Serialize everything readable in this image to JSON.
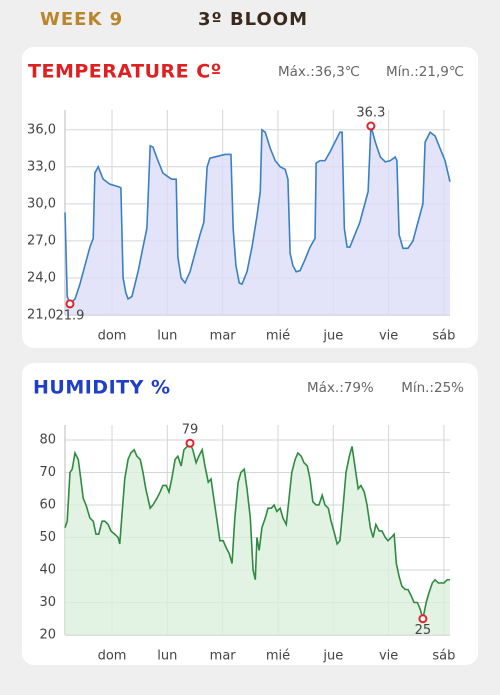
{
  "header": {
    "week": "WEEK 9",
    "stage": "3º BLOOM"
  },
  "chart_data": [
    {
      "type": "line",
      "title": "TEMPERATURE Cº",
      "title_color": "#e02020",
      "max_label": "Máx.:36,3℃",
      "min_label": "Mín.:21,9℃",
      "xlim": [
        0.15,
        7.11
      ],
      "xticks": [
        {
          "value": 1,
          "label": "dom"
        },
        {
          "value": 2,
          "label": "lun"
        },
        {
          "value": 3,
          "label": "mar"
        },
        {
          "value": 4,
          "label": "mié"
        },
        {
          "value": 5,
          "label": "jue"
        },
        {
          "value": 6,
          "label": "vie"
        },
        {
          "value": 7,
          "label": "sáb"
        }
      ],
      "ylim": [
        21,
        37.6
      ],
      "yticks": [
        {
          "value": 21,
          "label": "21,0"
        },
        {
          "value": 24,
          "label": "24,0"
        },
        {
          "value": 27,
          "label": "27,0"
        },
        {
          "value": 30,
          "label": "30,0"
        },
        {
          "value": 33,
          "label": "33,0"
        },
        {
          "value": 36,
          "label": "36,0"
        }
      ],
      "grid": true,
      "color": "#3a80c2",
      "area_color": "#dcdcf8",
      "marker_color": "#e0242c",
      "x": [
        0.15,
        0.19,
        0.24,
        0.33,
        0.42,
        0.51,
        0.6,
        0.66,
        0.69,
        0.75,
        0.84,
        0.96,
        1.11,
        1.16,
        1.2,
        1.25,
        1.29,
        1.36,
        1.47,
        1.56,
        1.63,
        1.69,
        1.74,
        1.83,
        1.92,
        2.01,
        2.08,
        2.16,
        2.19,
        2.25,
        2.32,
        2.41,
        2.5,
        2.59,
        2.66,
        2.72,
        2.77,
        2.86,
        2.95,
        3.04,
        3.1,
        3.15,
        3.19,
        3.24,
        3.3,
        3.35,
        3.44,
        3.53,
        3.62,
        3.68,
        3.71,
        3.77,
        3.86,
        3.95,
        4.04,
        4.13,
        4.18,
        4.22,
        4.27,
        4.33,
        4.4,
        4.49,
        4.58,
        4.67,
        4.69,
        4.76,
        4.85,
        4.94,
        5.03,
        5.12,
        5.16,
        5.2,
        5.25,
        5.3,
        5.39,
        5.48,
        5.57,
        5.63,
        5.68,
        5.76,
        5.85,
        5.94,
        6.03,
        6.12,
        6.15,
        6.19,
        6.26,
        6.35,
        6.44,
        6.53,
        6.62,
        6.66,
        6.75,
        6.84,
        6.93,
        7.02,
        7.11
      ],
      "values": [
        29.3,
        22.5,
        21.9,
        22.3,
        23.5,
        25,
        26.5,
        27.2,
        32.5,
        33,
        32,
        31.6,
        31.4,
        31.3,
        24,
        22.8,
        22.3,
        22.5,
        24.5,
        26.5,
        28,
        34.7,
        34.6,
        33.5,
        32.5,
        32.2,
        32,
        32,
        25.7,
        24,
        23.6,
        24.5,
        26,
        27.5,
        28.5,
        33,
        33.7,
        33.8,
        33.9,
        34,
        34,
        34,
        28,
        25,
        23.6,
        23.5,
        24.5,
        26.5,
        29,
        31,
        36,
        35.8,
        34.5,
        33.5,
        33,
        32.8,
        32,
        26,
        25,
        24.5,
        24.6,
        25.5,
        26.5,
        27.2,
        33.3,
        33.5,
        33.5,
        34.2,
        35,
        35.8,
        35.8,
        28,
        26.5,
        26.5,
        27.5,
        28.5,
        30,
        31,
        36.3,
        35,
        33.8,
        33.4,
        33.5,
        33.8,
        33.5,
        27.5,
        26.4,
        26.4,
        27,
        28.5,
        30,
        35,
        35.8,
        35.5,
        34.5,
        33.5,
        31.8
      ],
      "markers": [
        {
          "x": 5.68,
          "y": 36.3
        },
        {
          "x": 0.24,
          "y": 21.9
        }
      ]
    },
    {
      "type": "line",
      "title": "HUMIDITY %",
      "title_color": "#1f3fc8",
      "max_label": "Máx.:79%",
      "min_label": "Mín.:25%",
      "xlim": [
        0.15,
        7.11
      ],
      "xticks": [
        {
          "value": 1,
          "label": "dom"
        },
        {
          "value": 2,
          "label": "lun"
        },
        {
          "value": 3,
          "label": "mar"
        },
        {
          "value": 4,
          "label": "mié"
        },
        {
          "value": 5,
          "label": "jue"
        },
        {
          "value": 6,
          "label": "vie"
        },
        {
          "value": 7,
          "label": "sáb"
        }
      ],
      "ylim": [
        20,
        84.6
      ],
      "yticks": [
        20,
        30,
        40,
        50,
        60,
        70,
        80
      ],
      "grid": true,
      "color": "#2e8b40",
      "area_color": "#dbefdc",
      "marker_color": "#e0242c",
      "x": [
        0.15,
        0.19,
        0.24,
        0.28,
        0.33,
        0.39,
        0.42,
        0.48,
        0.53,
        0.6,
        0.66,
        0.71,
        0.76,
        0.82,
        0.87,
        0.93,
        0.98,
        1.05,
        1.11,
        1.14,
        1.18,
        1.23,
        1.29,
        1.34,
        1.4,
        1.45,
        1.51,
        1.56,
        1.61,
        1.69,
        1.74,
        1.81,
        1.87,
        1.92,
        1.98,
        2.03,
        2.08,
        2.14,
        2.19,
        2.25,
        2.3,
        2.36,
        2.41,
        2.46,
        2.52,
        2.57,
        2.63,
        2.68,
        2.74,
        2.79,
        2.84,
        2.9,
        2.95,
        3.01,
        3.06,
        3.12,
        3.17,
        3.22,
        3.28,
        3.33,
        3.39,
        3.44,
        3.5,
        3.55,
        3.59,
        3.62,
        3.66,
        3.71,
        3.77,
        3.82,
        3.88,
        3.93,
        3.98,
        4.04,
        4.09,
        4.15,
        4.2,
        4.25,
        4.31,
        4.36,
        4.42,
        4.47,
        4.53,
        4.58,
        4.63,
        4.69,
        4.74,
        4.8,
        4.85,
        4.91,
        4.96,
        5.01,
        5.07,
        5.12,
        5.18,
        5.23,
        5.29,
        5.34,
        5.39,
        5.45,
        5.5,
        5.56,
        5.61,
        5.67,
        5.72,
        5.77,
        5.83,
        5.88,
        5.94,
        5.99,
        6.05,
        6.1,
        6.14,
        6.19,
        6.24,
        6.3,
        6.35,
        6.41,
        6.46,
        6.52,
        6.57,
        6.62,
        6.68,
        6.73,
        6.79,
        6.84,
        6.9,
        6.95,
        7.0,
        7.06,
        7.11
      ],
      "values": [
        53,
        55,
        70,
        71,
        76,
        74,
        70,
        62,
        60,
        56,
        55,
        51,
        51,
        55,
        55,
        54,
        52,
        51,
        50,
        48,
        57,
        68,
        74,
        76,
        77,
        75,
        74,
        70,
        65,
        59,
        60,
        62,
        64,
        66,
        66,
        64,
        68,
        74,
        75,
        72,
        77,
        78,
        79,
        77,
        73,
        75,
        77,
        72,
        67,
        68,
        62,
        55,
        49,
        49,
        47,
        45,
        42,
        56,
        67,
        70,
        71,
        65,
        56,
        40,
        37,
        50,
        46,
        53,
        56,
        59,
        59,
        60,
        58,
        59,
        56,
        54,
        62,
        70,
        74,
        76,
        75,
        73,
        72,
        68,
        61,
        60,
        60,
        63,
        60,
        59,
        55,
        52,
        48,
        49,
        60,
        70,
        75,
        78,
        72,
        65,
        66,
        64,
        60,
        53,
        50,
        54,
        52,
        52,
        50,
        49,
        50,
        51,
        42,
        38,
        35,
        34,
        34,
        32,
        30,
        30,
        28,
        25,
        30,
        33,
        36,
        37,
        36,
        36,
        36,
        37,
        37
      ],
      "markers": [
        {
          "x": 2.41,
          "y": 79
        },
        {
          "x": 6.62,
          "y": 25
        }
      ]
    }
  ]
}
